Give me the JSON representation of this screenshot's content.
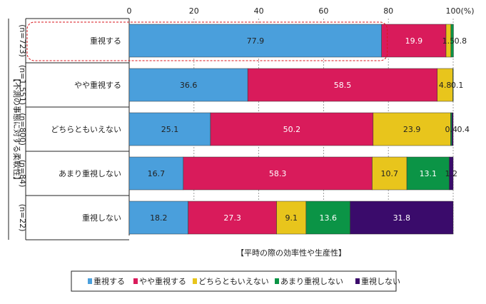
{
  "chart_data": {
    "type": "bar",
    "orientation": "horizontal",
    "stacked": true,
    "y_axis_title": "【不測の事態に対する柔軟性】",
    "x_axis_title": "【平時の際の効率性や生産性】",
    "x_ticks": [
      "0",
      "20",
      "40",
      "60",
      "80",
      "100"
    ],
    "x_unit": "(%)",
    "xlim": [
      0,
      100
    ],
    "grid": "vertical dashed",
    "legend_position": "bottom",
    "categories": [
      "重視する",
      "やや重視する",
      "どちらともいえない",
      "あまり重視しない",
      "重視しない"
    ],
    "n_labels": [
      "(n=723)",
      "(n=1,551)",
      "(n=800)",
      "(n=84)",
      "(n=22)"
    ],
    "series": [
      {
        "name": "重視する",
        "color": "#4a9fdc",
        "values": [
          77.9,
          36.6,
          25.1,
          16.7,
          18.2
        ],
        "labels": [
          "77.9",
          "36.6",
          "25.1",
          "16.7",
          "18.2"
        ]
      },
      {
        "name": "やや重視する",
        "color": "#d91b5b",
        "values": [
          19.9,
          58.5,
          50.2,
          58.3,
          27.3
        ],
        "labels": [
          "19.9",
          "58.5",
          "50.2",
          "58.3",
          "27.3"
        ]
      },
      {
        "name": "どちらともいえない",
        "color": "#e8c51c",
        "values": [
          1.5,
          4.8,
          23.9,
          10.7,
          9.1
        ],
        "labels": [
          "1.5",
          "4.8",
          "23.9",
          "10.7",
          "9.1"
        ]
      },
      {
        "name": "あまり重視しない",
        "color": "#0b9446",
        "values": [
          0.8,
          0.1,
          0.4,
          13.1,
          13.6
        ],
        "labels": [
          "0.8",
          "0.1",
          "0.4",
          "13.1",
          "13.6"
        ]
      },
      {
        "name": "重視しない",
        "color": "#3a0b6b",
        "values": [
          0.0,
          0.0,
          0.4,
          1.2,
          31.8
        ],
        "labels": [
          "",
          "",
          "0.4",
          "1.2",
          "31.8"
        ]
      }
    ],
    "highlight_category": "重視する"
  }
}
